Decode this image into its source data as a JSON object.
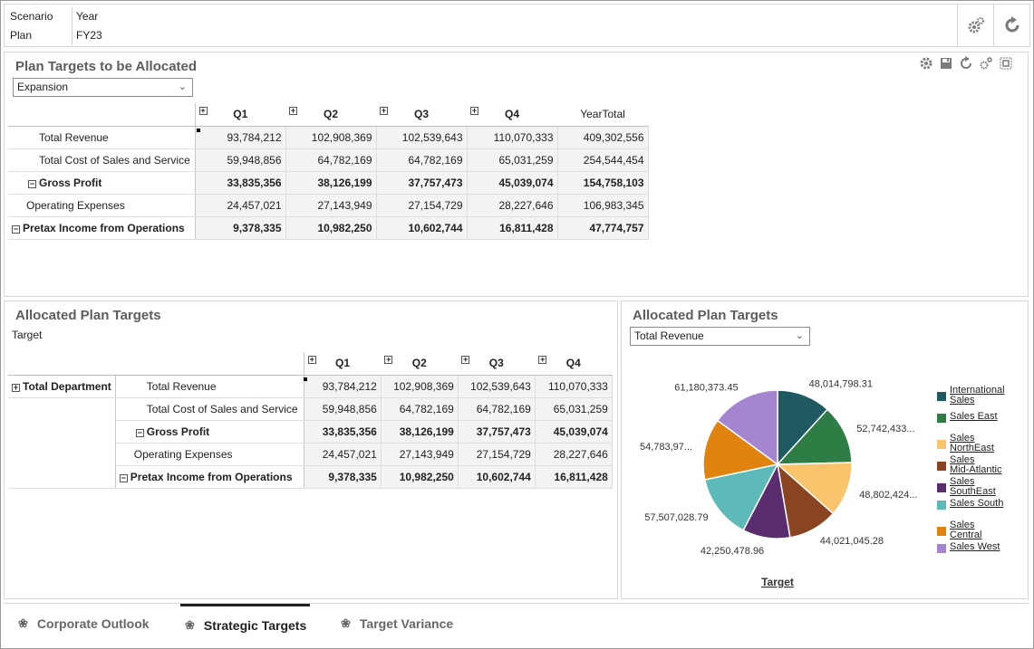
{
  "pov": {
    "rows": [
      {
        "label": "Scenario",
        "value": "Year"
      },
      {
        "label": "Plan",
        "value": "FY23"
      }
    ]
  },
  "top_panel": {
    "title": "Plan Targets to be Allocated",
    "dropdown_value": "Expansion",
    "columns": [
      "Q1",
      "Q2",
      "Q3",
      "Q4",
      "YearTotal"
    ],
    "rows": [
      {
        "label": "Total Revenue",
        "values": [
          "93,784,212",
          "102,908,369",
          "102,539,643",
          "110,070,333",
          "409,302,556"
        ]
      },
      {
        "label": "Total Cost of Sales and Service",
        "values": [
          "59,948,856",
          "64,782,169",
          "64,782,169",
          "65,031,259",
          "254,544,454"
        ]
      },
      {
        "label": "Gross Profit",
        "values": [
          "33,835,356",
          "38,126,199",
          "37,757,473",
          "45,039,074",
          "154,758,103"
        ]
      },
      {
        "label": "Operating Expenses",
        "values": [
          "24,457,021",
          "27,143,949",
          "27,154,729",
          "28,227,646",
          "106,983,345"
        ]
      },
      {
        "label": "Pretax Income from Operations",
        "values": [
          "9,378,335",
          "10,982,250",
          "10,602,744",
          "16,811,428",
          "47,774,757"
        ]
      }
    ]
  },
  "bottom_left": {
    "title": "Allocated Plan Targets",
    "subtitle": "Target",
    "row_dimension": "Total Department",
    "columns": [
      "Q1",
      "Q2",
      "Q3",
      "Q4"
    ],
    "rows": [
      {
        "label": "Total Revenue",
        "values": [
          "93,784,212",
          "102,908,369",
          "102,539,643",
          "110,070,333"
        ]
      },
      {
        "label": "Total Cost of Sales and Service",
        "values": [
          "59,948,856",
          "64,782,169",
          "64,782,169",
          "65,031,259"
        ]
      },
      {
        "label": "Gross Profit",
        "values": [
          "33,835,356",
          "38,126,199",
          "37,757,473",
          "45,039,074"
        ]
      },
      {
        "label": "Operating Expenses",
        "values": [
          "24,457,021",
          "27,143,949",
          "27,154,729",
          "28,227,646"
        ]
      },
      {
        "label": "Pretax Income from Operations",
        "values": [
          "9,378,335",
          "10,982,250",
          "10,602,744",
          "16,811,428"
        ]
      }
    ]
  },
  "bottom_right": {
    "title": "Allocated Plan Targets",
    "dropdown_value": "Total Revenue"
  },
  "chart_data": {
    "type": "pie",
    "xlabel": "Target",
    "slices": [
      {
        "name": "International Sales",
        "value": 48014798.31,
        "label": "48,014,798.31",
        "color": "#1f5a63"
      },
      {
        "name": "Sales East",
        "value": 52742433,
        "label": "52,742,433...",
        "color": "#2e7d45"
      },
      {
        "name": "Sales NorthEast",
        "value": 48802424,
        "label": "48,802,424...",
        "color": "#f9c46b"
      },
      {
        "name": "Sales Mid-Atlantic",
        "value": 44021045.28,
        "label": "44,021,045.28",
        "color": "#8a4421"
      },
      {
        "name": "Sales SouthEast",
        "value": 42250478.96,
        "label": "42,250,478.96",
        "color": "#5a2d6e"
      },
      {
        "name": "Sales South",
        "value": 57507028.79,
        "label": "57,507,028.79",
        "color": "#5dbab8"
      },
      {
        "name": "Sales Central",
        "value": 54783970,
        "label": "54,783,97...",
        "color": "#e0830f"
      },
      {
        "name": "Sales West",
        "value": 61180373.45,
        "label": "61,180,373.45",
        "color": "#a585cf"
      }
    ],
    "legend_position": "right",
    "legend_items": [
      {
        "line1": "International",
        "line2": "Sales"
      },
      {
        "line1": "Sales East",
        "line2": ""
      },
      {
        "line1": "Sales",
        "line2": "NorthEast"
      },
      {
        "line1": "Sales",
        "line2": "Mid-Atlantic"
      },
      {
        "line1": "Sales",
        "line2": "SouthEast"
      },
      {
        "line1": "Sales South",
        "line2": ""
      },
      {
        "line1": "Sales",
        "line2": "Central"
      },
      {
        "line1": "Sales West",
        "line2": ""
      }
    ]
  },
  "tabs": [
    {
      "label": "Corporate Outlook",
      "active": false
    },
    {
      "label": "Strategic Targets",
      "active": true
    },
    {
      "label": "Target Variance",
      "active": false
    }
  ],
  "icons": {
    "pov_actions": [
      "gears-icon",
      "refresh-icon"
    ],
    "top_toolbar": [
      "settings-icon",
      "save-icon",
      "refresh-icon",
      "actions-icon",
      "maximize-icon"
    ]
  }
}
